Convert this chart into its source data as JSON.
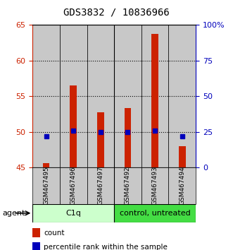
{
  "title": "GDS3832 / 10836966",
  "categories": [
    "GSM467495",
    "GSM467496",
    "GSM467497",
    "GSM467492",
    "GSM467493",
    "GSM467494"
  ],
  "red_values": [
    45.6,
    56.5,
    52.7,
    53.3,
    63.8,
    48.0
  ],
  "blue_values": [
    22,
    26,
    25,
    25,
    26,
    22
  ],
  "ylim_left": [
    45,
    65
  ],
  "ylim_right": [
    0,
    100
  ],
  "yticks_left": [
    45,
    50,
    55,
    60,
    65
  ],
  "yticks_right": [
    0,
    25,
    50,
    75,
    100
  ],
  "ytick_labels_right": [
    "0",
    "25",
    "50",
    "75",
    "100%"
  ],
  "group1_label": "C1q",
  "group2_label": "control, untreated",
  "agent_label": "agent",
  "legend_red": "count",
  "legend_blue": "percentile rank within the sample",
  "bar_color": "#cc2200",
  "dot_color": "#0000bb",
  "group1_color": "#ccffcc",
  "group2_color": "#44dd44",
  "col_bg_color": "#c8c8c8",
  "title_fontsize": 10,
  "tick_fontsize": 8,
  "label_fontsize": 8
}
